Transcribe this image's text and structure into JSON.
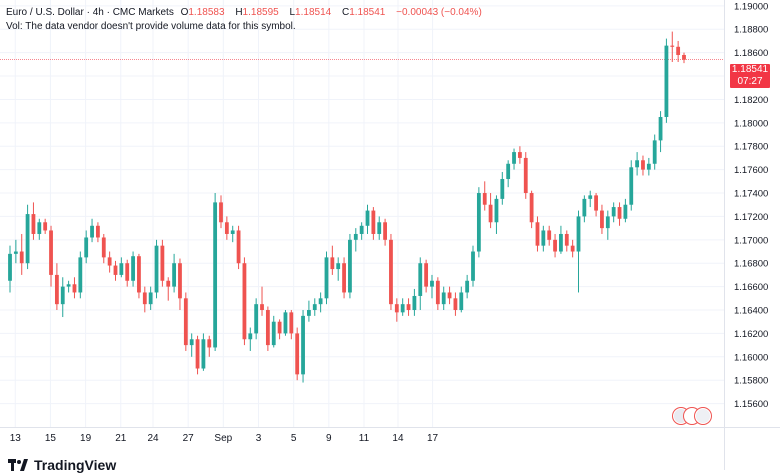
{
  "legend": {
    "symbol": "Euro / U.S. Dollar · 4h · CMC Markets",
    "o_label": "O",
    "o_value": "1.18583",
    "h_label": "H",
    "h_value": "1.18595",
    "l_label": "L",
    "l_value": "1.18514",
    "c_label": "C",
    "c_value": "1.18541",
    "change": "−0.00043 (−0.04%)",
    "volume_note": "Vol: The data vendor doesn't provide volume data for this symbol."
  },
  "price_badge": {
    "price": "1.18541",
    "countdown": "07:27"
  },
  "brand": {
    "name": "TradingView"
  },
  "colors": {
    "up": "#26a69a",
    "down": "#ef5350",
    "grid": "#f0f3fa",
    "price_line": "#f23645"
  },
  "chart_data": {
    "type": "candlestick",
    "title": "Euro / U.S. Dollar · 4h · CMC Markets",
    "ylim": [
      1.154,
      1.1905
    ],
    "y_ticks": [
      "1.19000",
      "1.18800",
      "1.18600",
      "1.18400",
      "1.18200",
      "1.18000",
      "1.17800",
      "1.17600",
      "1.17400",
      "1.17200",
      "1.17000",
      "1.16800",
      "1.16600",
      "1.16400",
      "1.16200",
      "1.16000",
      "1.15800",
      "1.15600"
    ],
    "y_tick_values": [
      1.19,
      1.188,
      1.186,
      1.184,
      1.182,
      1.18,
      1.178,
      1.176,
      1.174,
      1.172,
      1.17,
      1.168,
      1.166,
      1.164,
      1.162,
      1.16,
      1.158,
      1.156
    ],
    "x_labels": [
      "13",
      "15",
      "19",
      "21",
      "24",
      "27",
      "Sep",
      "3",
      "5",
      "9",
      "11",
      "14",
      "17"
    ],
    "x_label_positions": [
      0.9,
      6.9,
      12.9,
      18.9,
      24.4,
      30.4,
      36.4,
      42.4,
      48.4,
      54.4,
      60.4,
      66.2,
      72.1
    ],
    "last_price": 1.18541,
    "candles": [
      [
        1.1665,
        1.1695,
        1.1655,
        1.1688
      ],
      [
        1.1688,
        1.17,
        1.168,
        1.169
      ],
      [
        1.169,
        1.1705,
        1.167,
        1.168
      ],
      [
        1.168,
        1.173,
        1.1675,
        1.1722
      ],
      [
        1.1722,
        1.1732,
        1.17,
        1.1705
      ],
      [
        1.1705,
        1.1718,
        1.17,
        1.1715
      ],
      [
        1.1715,
        1.1718,
        1.1705,
        1.1708
      ],
      [
        1.1708,
        1.1712,
        1.166,
        1.167
      ],
      [
        1.167,
        1.168,
        1.164,
        1.1645
      ],
      [
        1.1645,
        1.1668,
        1.1634,
        1.166
      ],
      [
        1.166,
        1.1665,
        1.1655,
        1.1662
      ],
      [
        1.1662,
        1.1668,
        1.165,
        1.1655
      ],
      [
        1.1655,
        1.169,
        1.165,
        1.1685
      ],
      [
        1.1685,
        1.1708,
        1.168,
        1.1702
      ],
      [
        1.1702,
        1.1718,
        1.1698,
        1.1712
      ],
      [
        1.1712,
        1.1715,
        1.1698,
        1.1702
      ],
      [
        1.1702,
        1.1705,
        1.168,
        1.1685
      ],
      [
        1.1685,
        1.169,
        1.1672,
        1.1678
      ],
      [
        1.1678,
        1.1682,
        1.1665,
        1.167
      ],
      [
        1.167,
        1.1685,
        1.1668,
        1.168
      ],
      [
        1.168,
        1.1683,
        1.166,
        1.1665
      ],
      [
        1.1665,
        1.169,
        1.166,
        1.1686
      ],
      [
        1.1686,
        1.1688,
        1.165,
        1.1655
      ],
      [
        1.1655,
        1.166,
        1.1638,
        1.1645
      ],
      [
        1.1645,
        1.166,
        1.164,
        1.1655
      ],
      [
        1.1655,
        1.17,
        1.165,
        1.1695
      ],
      [
        1.1695,
        1.17,
        1.166,
        1.1665
      ],
      [
        1.1665,
        1.1668,
        1.1648,
        1.166
      ],
      [
        1.166,
        1.1688,
        1.1655,
        1.168
      ],
      [
        1.168,
        1.1684,
        1.164,
        1.165
      ],
      [
        1.165,
        1.1655,
        1.1605,
        1.161
      ],
      [
        1.161,
        1.162,
        1.16,
        1.1615
      ],
      [
        1.1615,
        1.1618,
        1.1585,
        1.159
      ],
      [
        1.159,
        1.162,
        1.1588,
        1.1615
      ],
      [
        1.1615,
        1.1618,
        1.16,
        1.1608
      ],
      [
        1.1608,
        1.174,
        1.1605,
        1.1732
      ],
      [
        1.1732,
        1.1738,
        1.171,
        1.1715
      ],
      [
        1.1715,
        1.172,
        1.17,
        1.1705
      ],
      [
        1.1705,
        1.1712,
        1.1698,
        1.1708
      ],
      [
        1.1708,
        1.1712,
        1.1675,
        1.168
      ],
      [
        1.168,
        1.1685,
        1.161,
        1.1615
      ],
      [
        1.1615,
        1.1625,
        1.1605,
        1.162
      ],
      [
        1.162,
        1.165,
        1.1615,
        1.1645
      ],
      [
        1.1645,
        1.166,
        1.1635,
        1.164
      ],
      [
        1.164,
        1.1643,
        1.1605,
        1.161
      ],
      [
        1.161,
        1.1635,
        1.1608,
        1.163
      ],
      [
        1.163,
        1.1632,
        1.1615,
        1.162
      ],
      [
        1.162,
        1.164,
        1.1618,
        1.1638
      ],
      [
        1.1638,
        1.164,
        1.1615,
        1.162
      ],
      [
        1.162,
        1.1625,
        1.158,
        1.1585
      ],
      [
        1.1585,
        1.164,
        1.1578,
        1.1635
      ],
      [
        1.1635,
        1.1648,
        1.163,
        1.164
      ],
      [
        1.164,
        1.165,
        1.1635,
        1.1645
      ],
      [
        1.1645,
        1.1655,
        1.1638,
        1.165
      ],
      [
        1.165,
        1.169,
        1.1645,
        1.1685
      ],
      [
        1.1685,
        1.1695,
        1.167,
        1.1675
      ],
      [
        1.1675,
        1.1685,
        1.1665,
        1.168
      ],
      [
        1.168,
        1.1685,
        1.165,
        1.1655
      ],
      [
        1.1655,
        1.1705,
        1.165,
        1.17
      ],
      [
        1.17,
        1.171,
        1.169,
        1.1705
      ],
      [
        1.1705,
        1.1715,
        1.17,
        1.1712
      ],
      [
        1.1712,
        1.173,
        1.1705,
        1.1725
      ],
      [
        1.1725,
        1.1728,
        1.17,
        1.1705
      ],
      [
        1.1705,
        1.172,
        1.17,
        1.1715
      ],
      [
        1.1715,
        1.1718,
        1.1695,
        1.17
      ],
      [
        1.17,
        1.1705,
        1.164,
        1.1645
      ],
      [
        1.1645,
        1.165,
        1.163,
        1.1638
      ],
      [
        1.1638,
        1.165,
        1.1635,
        1.1645
      ],
      [
        1.1645,
        1.165,
        1.1635,
        1.164
      ],
      [
        1.164,
        1.1658,
        1.1635,
        1.1652
      ],
      [
        1.1652,
        1.1685,
        1.164,
        1.168
      ],
      [
        1.168,
        1.1683,
        1.1655,
        1.166
      ],
      [
        1.166,
        1.167,
        1.165,
        1.1665
      ],
      [
        1.1665,
        1.1668,
        1.164,
        1.1645
      ],
      [
        1.1645,
        1.166,
        1.164,
        1.1655
      ],
      [
        1.1655,
        1.166,
        1.1645,
        1.165
      ],
      [
        1.165,
        1.1655,
        1.1635,
        1.164
      ],
      [
        1.164,
        1.166,
        1.1638,
        1.1655
      ],
      [
        1.1655,
        1.167,
        1.165,
        1.1665
      ],
      [
        1.1665,
        1.1695,
        1.166,
        1.169
      ],
      [
        1.169,
        1.1745,
        1.1685,
        1.174
      ],
      [
        1.174,
        1.175,
        1.1725,
        1.173
      ],
      [
        1.173,
        1.174,
        1.171,
        1.1715
      ],
      [
        1.1715,
        1.1738,
        1.1705,
        1.1735
      ],
      [
        1.1735,
        1.1758,
        1.173,
        1.1752
      ],
      [
        1.1752,
        1.1768,
        1.1745,
        1.1765
      ],
      [
        1.1765,
        1.1778,
        1.176,
        1.1775
      ],
      [
        1.1775,
        1.178,
        1.1765,
        1.177
      ],
      [
        1.177,
        1.1775,
        1.1735,
        1.174
      ],
      [
        1.174,
        1.1742,
        1.171,
        1.1715
      ],
      [
        1.1715,
        1.172,
        1.169,
        1.1695
      ],
      [
        1.1695,
        1.1712,
        1.169,
        1.1708
      ],
      [
        1.1708,
        1.1712,
        1.1695,
        1.17
      ],
      [
        1.17,
        1.1705,
        1.1685,
        1.169
      ],
      [
        1.169,
        1.1712,
        1.1688,
        1.1705
      ],
      [
        1.1705,
        1.1708,
        1.169,
        1.1695
      ],
      [
        1.1695,
        1.17,
        1.1685,
        1.169
      ],
      [
        1.169,
        1.1725,
        1.1655,
        1.172
      ],
      [
        1.172,
        1.1738,
        1.1715,
        1.1735
      ],
      [
        1.1735,
        1.1742,
        1.1728,
        1.1738
      ],
      [
        1.1738,
        1.174,
        1.172,
        1.1725
      ],
      [
        1.1725,
        1.173,
        1.1705,
        1.171
      ],
      [
        1.171,
        1.1725,
        1.17,
        1.172
      ],
      [
        1.172,
        1.1732,
        1.1715,
        1.1728
      ],
      [
        1.1728,
        1.1732,
        1.1712,
        1.1718
      ],
      [
        1.1718,
        1.1735,
        1.1715,
        1.173
      ],
      [
        1.173,
        1.1768,
        1.1725,
        1.1762
      ],
      [
        1.1762,
        1.1775,
        1.1755,
        1.1768
      ],
      [
        1.1768,
        1.1772,
        1.1755,
        1.176
      ],
      [
        1.176,
        1.177,
        1.1755,
        1.1765
      ],
      [
        1.1765,
        1.179,
        1.176,
        1.1785
      ],
      [
        1.1785,
        1.181,
        1.1775,
        1.1805
      ],
      [
        1.1805,
        1.1872,
        1.18,
        1.1866
      ],
      [
        1.1866,
        1.1878,
        1.1852,
        1.1865
      ],
      [
        1.1865,
        1.187,
        1.1852,
        1.1858
      ],
      [
        1.1858,
        1.186,
        1.1851,
        1.1854
      ]
    ]
  }
}
